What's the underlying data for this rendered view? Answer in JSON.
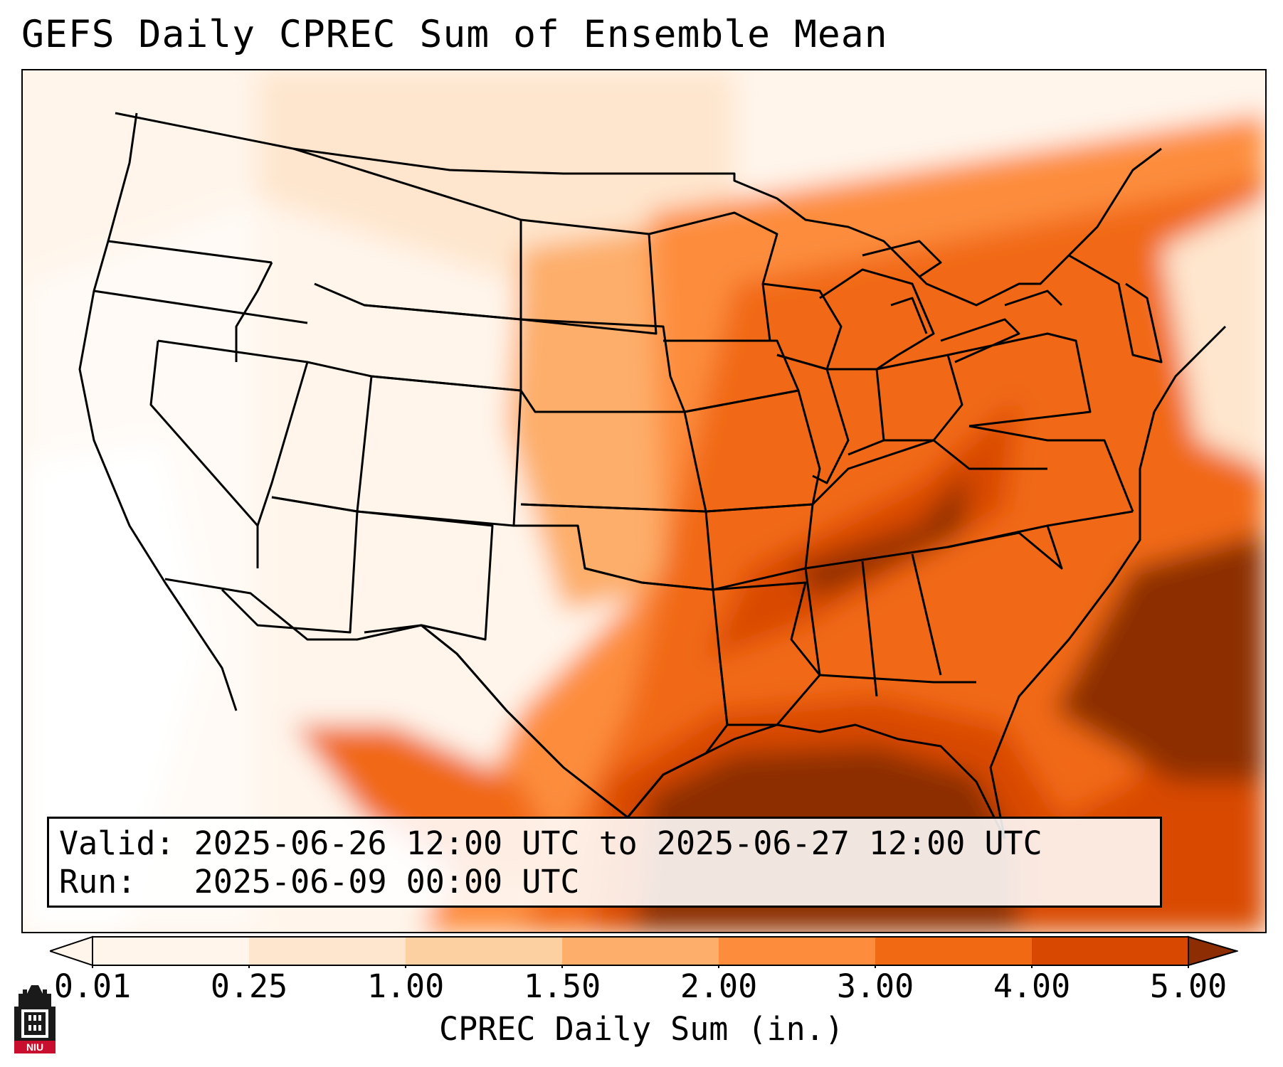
{
  "title": "GEFS Daily CPREC Sum of Ensemble Mean",
  "info": {
    "valid_label": "Valid:",
    "valid_value": "2025-06-26 12:00 UTC to 2025-06-27 12:00 UTC",
    "run_label": "Run:",
    "run_value": "2025-06-09 00:00 UTC"
  },
  "colorbar": {
    "label": "CPREC Daily Sum (in.)",
    "ticks": [
      "0.01",
      "0.25",
      "1.00",
      "1.50",
      "2.00",
      "3.00",
      "4.00",
      "5.00"
    ],
    "colors": [
      "#fff5eb",
      "#fee6ce",
      "#fdd0a2",
      "#fdae6b",
      "#fd8d3c",
      "#f16913",
      "#d94801",
      "#8c2d04"
    ],
    "extend": "both"
  },
  "logo": {
    "text": "NIU",
    "colors": {
      "dark": "#1a1a1a",
      "red": "#c8102e"
    }
  }
}
